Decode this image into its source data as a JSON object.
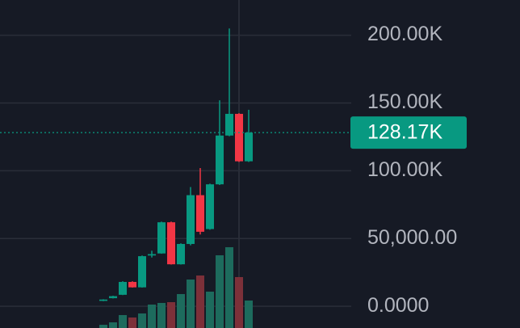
{
  "chart_data": {
    "type": "candlestick",
    "categories": [
      null,
      null,
      null,
      null,
      null,
      null,
      null,
      null,
      null,
      null,
      null,
      null,
      null,
      null,
      null,
      null
    ],
    "open": [
      4000,
      6000,
      8500,
      18000,
      14000,
      37500,
      39000,
      62000,
      31000,
      46000,
      82000,
      57000,
      90000,
      126000,
      142000,
      107000
    ],
    "high": [
      5200,
      7800,
      18500,
      18500,
      37500,
      41000,
      62500,
      62500,
      46500,
      88000,
      102000,
      90500,
      152000,
      205000,
      142500,
      145000
    ],
    "low": [
      3800,
      5800,
      8300,
      13800,
      13800,
      36000,
      38800,
      30800,
      30800,
      45000,
      53000,
      56500,
      89500,
      125500,
      106500,
      106500
    ],
    "close": [
      5000,
      7500,
      18000,
      14000,
      37000,
      38500,
      62000,
      31000,
      46000,
      82000,
      55000,
      90000,
      126000,
      142000,
      107000,
      128170
    ],
    "volume": [
      4,
      7,
      16,
      13,
      18,
      29,
      31,
      32,
      42,
      60,
      65,
      45,
      90,
      100,
      63,
      34
    ],
    "up_color": "#089981",
    "down_color": "#f23645",
    "volume_up_color": "#1d6b5d",
    "volume_down_color": "#7c3039",
    "ylim": [
      -16000,
      226000
    ],
    "yticks": [
      {
        "value": 0,
        "label": "0.0000"
      },
      {
        "value": 50000,
        "label": "50,000.00"
      },
      {
        "value": 100000,
        "label": "100.00K"
      },
      {
        "value": 150000,
        "label": "150.00K"
      },
      {
        "value": 200000,
        "label": "200.00K"
      }
    ],
    "last_price": {
      "value": 128170,
      "label": "128.17K"
    },
    "grid": true
  }
}
